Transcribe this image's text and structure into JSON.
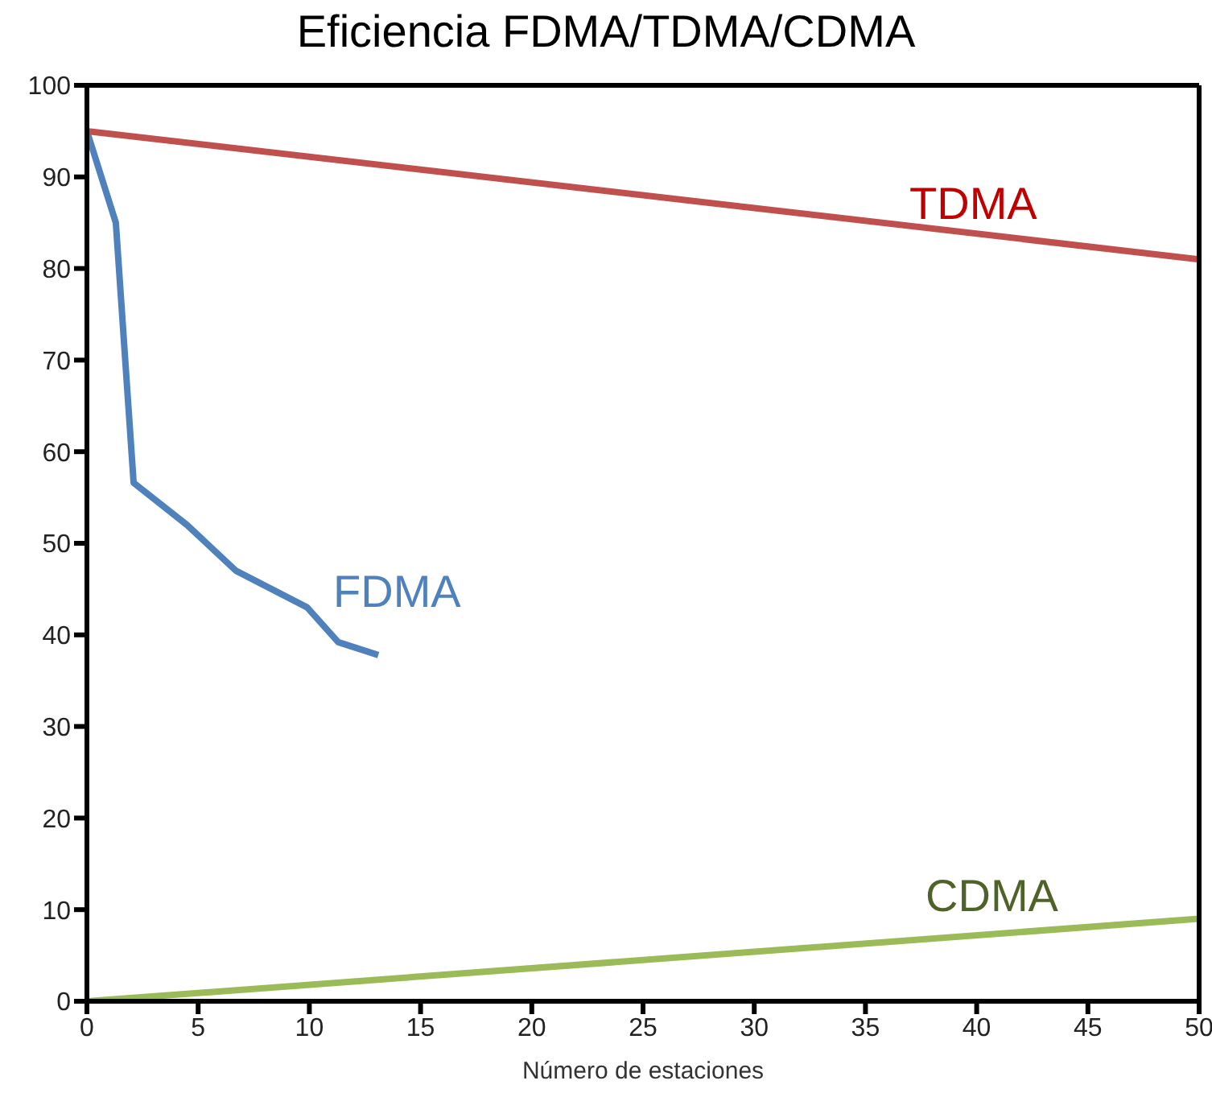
{
  "chart_data": {
    "type": "line",
    "title": "Eficiencia FDMA/TDMA/CDMA",
    "xlabel": "Número de estaciones",
    "xlim": [
      0,
      50
    ],
    "xticks": [
      0,
      5,
      10,
      15,
      20,
      25,
      30,
      35,
      40,
      45,
      50
    ],
    "ylim": [
      0,
      100
    ],
    "yticks": [
      0,
      10,
      20,
      30,
      40,
      50,
      60,
      70,
      80,
      90,
      100
    ],
    "marker": "none",
    "line_style": "solid",
    "series": [
      {
        "name": "FDMA",
        "color": "#4f81bd",
        "x": [
          0,
          1.3,
          2.1,
          4.5,
          6.7,
          9.9,
          11.3,
          13.1
        ],
        "values": [
          95,
          85,
          56.6,
          52,
          47,
          43,
          39.2,
          37.8
        ]
      },
      {
        "name": "TDMA",
        "color": "#c0504d",
        "x": [
          0,
          50
        ],
        "values": [
          95,
          81
        ]
      },
      {
        "name": "CDMA",
        "color": "#9bbb59",
        "x": [
          0,
          50
        ],
        "values": [
          0,
          9
        ]
      }
    ]
  }
}
